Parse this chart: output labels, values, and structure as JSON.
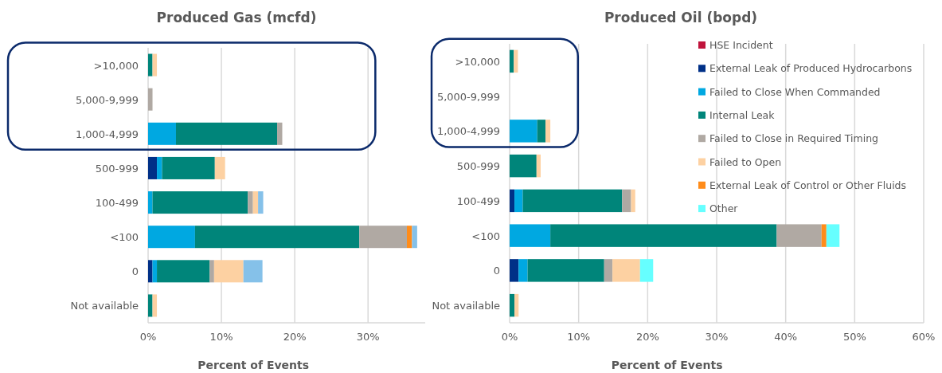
{
  "chart_data": [
    {
      "type": "bar",
      "orientation": "horizontal",
      "stacked": true,
      "title": "Produced Gas (mcfd)",
      "xlabel": "Percent of Events",
      "categories": [
        ">10,000",
        "5,000-9,999",
        "1,000-4,999",
        "500-999",
        "100-499",
        "<100",
        "0",
        "Not available"
      ],
      "xlim": [
        0,
        37.8
      ],
      "xticks": [
        {
          "value": 0,
          "label": "0%"
        },
        {
          "value": 10,
          "label": "10%"
        },
        {
          "value": 20,
          "label": "20%"
        },
        {
          "value": 30,
          "label": "30%"
        }
      ],
      "grid": "x",
      "legend": false,
      "series": [
        {
          "color": "#003087",
          "values": [
            null,
            null,
            null,
            1.2,
            null,
            null,
            0.6,
            null
          ]
        },
        {
          "color": "#00a8e1",
          "values": [
            null,
            null,
            3.8,
            0.7,
            0.6,
            6.4,
            0.6,
            null
          ]
        },
        {
          "color": "#00857a",
          "values": [
            0.6,
            null,
            13.8,
            7.2,
            13.0,
            22.4,
            7.2,
            0.6
          ]
        },
        {
          "color": "#b0a9a3",
          "values": [
            null,
            0.6,
            0.7,
            null,
            0.7,
            6.5,
            0.6,
            null
          ]
        },
        {
          "color": "#fdd1a2",
          "values": [
            0.6,
            null,
            null,
            1.4,
            0.7,
            null,
            4.0,
            0.6
          ]
        },
        {
          "color": "#ff8c1a",
          "values": [
            null,
            null,
            null,
            null,
            null,
            0.7,
            null,
            null
          ]
        },
        {
          "color": "#85c1e9",
          "values": [
            null,
            null,
            null,
            null,
            0.7,
            0.7,
            2.6,
            null
          ]
        }
      ]
    },
    {
      "type": "bar",
      "orientation": "horizontal",
      "stacked": true,
      "title": "Produced Oil (bopd)",
      "xlabel": "Percent of Events",
      "categories": [
        ">10,000",
        "5,000-9,999",
        "1,000-4,999",
        "500-999",
        "100-499",
        "<100",
        "0",
        "Not available"
      ],
      "xlim": [
        0,
        60
      ],
      "xticks": [
        {
          "value": 0,
          "label": "0%"
        },
        {
          "value": 10,
          "label": "10%"
        },
        {
          "value": 20,
          "label": "20%"
        },
        {
          "value": 30,
          "label": "30%"
        },
        {
          "value": 40,
          "label": "40%"
        },
        {
          "value": 50,
          "label": "50%"
        },
        {
          "value": 60,
          "label": "60%"
        }
      ],
      "grid": "x",
      "legend": "top right",
      "series": [
        {
          "name": "HSE Incident",
          "color": "#c0143c",
          "values": [
            null,
            null,
            null,
            null,
            null,
            null,
            null,
            null
          ]
        },
        {
          "name": "External Leak of Produced Hydrocarbons",
          "color": "#003087",
          "values": [
            null,
            null,
            null,
            null,
            0.7,
            null,
            1.3,
            null
          ]
        },
        {
          "name": "Failed to Close When Commanded",
          "color": "#00a8e1",
          "values": [
            null,
            null,
            4.0,
            null,
            1.2,
            5.9,
            1.3,
            null
          ]
        },
        {
          "name": "Internal Leak",
          "color": "#00857a",
          "values": [
            0.6,
            null,
            1.2,
            3.9,
            14.4,
            32.8,
            11.1,
            0.7
          ]
        },
        {
          "name": "Failed to Close in Required Timing",
          "color": "#b0a9a3",
          "values": [
            null,
            null,
            null,
            null,
            1.3,
            6.5,
            1.2,
            null
          ]
        },
        {
          "name": "Failed to Open",
          "color": "#fdd1a2",
          "values": [
            0.6,
            null,
            0.7,
            0.6,
            0.6,
            null,
            4.0,
            0.6
          ]
        },
        {
          "name": "External Leak of Control or Other Fluids",
          "color": "#ff8c1a",
          "values": [
            null,
            null,
            null,
            null,
            null,
            0.7,
            null,
            null
          ]
        },
        {
          "name": "Other",
          "color": "#66ffff",
          "values": [
            null,
            null,
            null,
            null,
            null,
            1.9,
            1.9,
            null
          ]
        }
      ]
    }
  ]
}
